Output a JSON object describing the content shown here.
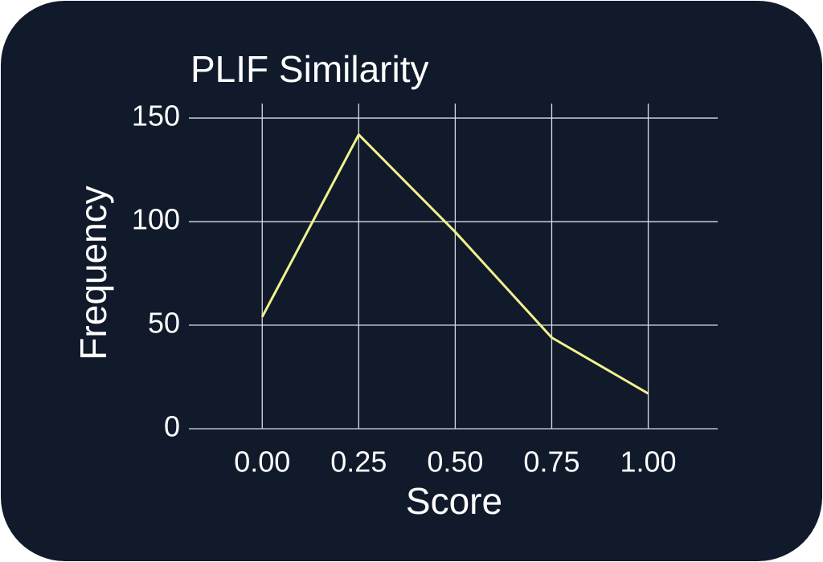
{
  "chart_data": {
    "type": "line",
    "title": "PLIF Similarity",
    "x_label": "Score",
    "y_label": "Frequency",
    "x": [
      0,
      0.25,
      0.5,
      0.75,
      1
    ],
    "values": [
      54,
      142,
      95,
      44,
      17
    ],
    "color": "#f2f28c",
    "xlim": [
      -0.19,
      1.18
    ],
    "ylim": [
      0,
      157
    ],
    "xticks": [
      {
        "value": 0,
        "label": "0.00"
      },
      0.25,
      {
        "value": 0.5,
        "label": "0.50"
      },
      0.75,
      {
        "value": 1,
        "label": "1.00"
      }
    ],
    "yticks": [
      0,
      50,
      100,
      150
    ],
    "grid": true
  }
}
